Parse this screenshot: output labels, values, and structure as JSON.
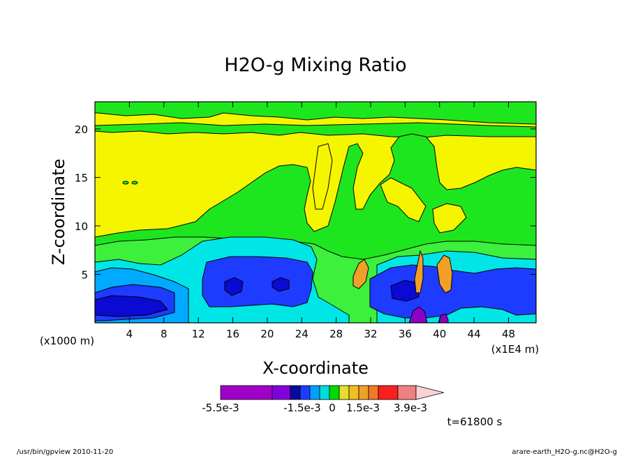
{
  "chart_data": {
    "type": "heatmap",
    "title": "H2O-g Mixing Ratio",
    "xlabel": "X-coordinate",
    "ylabel": "Z-coordinate",
    "x_unit_left": "(x1000 m)",
    "x_unit_right": "(x1E4 m)",
    "x_ticks": [
      "4",
      "8",
      "12",
      "16",
      "20",
      "24",
      "28",
      "32",
      "36",
      "40",
      "44",
      "48"
    ],
    "y_ticks": [
      "5",
      "10",
      "15",
      "20"
    ],
    "xlim": [
      0,
      51.2
    ],
    "ylim": [
      0,
      22.8
    ],
    "time_label": "t=61800 s",
    "colorbar_labels": [
      "-5.5e-3",
      "-1.5e-3",
      "0",
      "1.5e-3",
      "3.9e-3"
    ],
    "colorbar_colors": [
      "#a000c8",
      "#a000c8",
      "#a000c8",
      "#8200dc",
      "#1e3cff",
      "#0a0aa0",
      "#1e3cff",
      "#00a0ff",
      "#00dcdc",
      "#00dc00",
      "#e6dc32",
      "#e6af2d",
      "#f08228",
      "#fa3c3c",
      "#f08080",
      "#fad2d2"
    ],
    "level_colors": {
      "yellow": "#f5f500",
      "green": "#1ee61e",
      "lightgreen": "#3cf03c",
      "cyan": "#00e6e6",
      "lightblue": "#00aaff",
      "blue": "#1e3cff",
      "darkblue": "#0a0ad2",
      "orange": "#f0a028",
      "purple": "#8c00c8"
    }
  },
  "footer": {
    "left": "/usr/bin/gpview   2010-11-20",
    "right": "arare-earth_H2O-g.nc@H2O-g"
  }
}
